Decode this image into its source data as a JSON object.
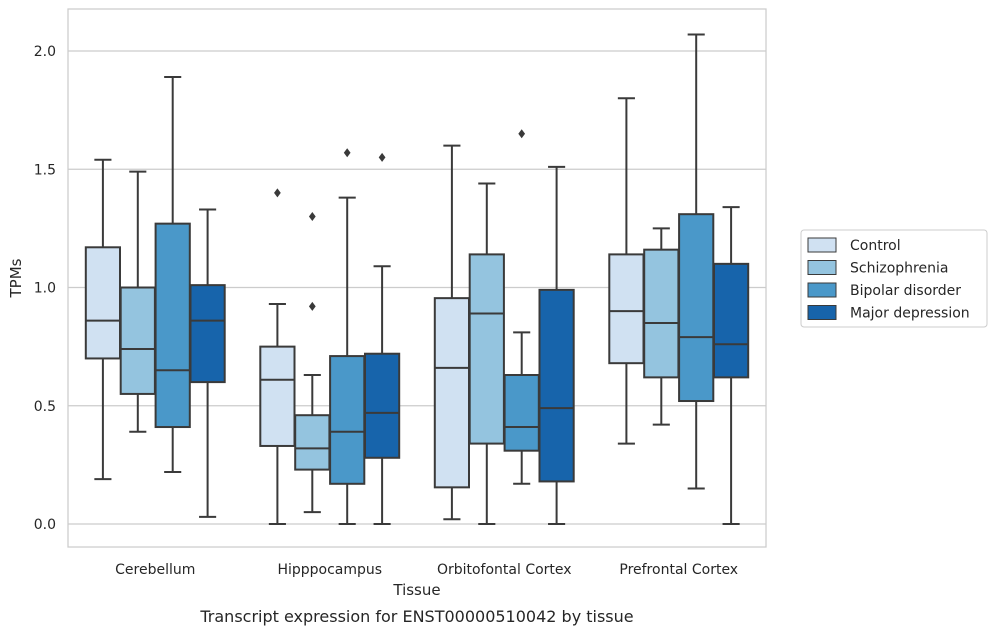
{
  "figure": {
    "caption": "Transcript expression for ENST00000510042 by tissue"
  },
  "chart_data": {
    "type": "box",
    "title": "",
    "xlabel": "Tissue",
    "ylabel": "TPMs",
    "ylim": [
      -0.1,
      2.18
    ],
    "yticks": [
      0.0,
      0.5,
      1.0,
      1.5,
      2.0
    ],
    "ytick_labels": [
      "0.0",
      "0.5",
      "1.0",
      "1.5",
      "2.0"
    ],
    "grid": "horizontal",
    "legend_position": "right",
    "categories": [
      "Cerebellum",
      "Hipppocampus",
      "Orbitofontal Cortex",
      "Prefrontal Cortex"
    ],
    "series": [
      {
        "name": "Control",
        "color": "#d0e1f2",
        "boxes": [
          {
            "whislo": 0.19,
            "q1": 0.7,
            "med": 0.86,
            "q3": 1.17,
            "whishi": 1.54,
            "fliers": []
          },
          {
            "whislo": 0.0,
            "q1": 0.33,
            "med": 0.61,
            "q3": 0.75,
            "whishi": 0.93,
            "fliers": [
              1.4
            ]
          },
          {
            "whislo": 0.02,
            "q1": 0.155,
            "med": 0.66,
            "q3": 0.955,
            "whishi": 1.6,
            "fliers": []
          },
          {
            "whislo": 0.34,
            "q1": 0.68,
            "med": 0.9,
            "q3": 1.14,
            "whishi": 1.8,
            "fliers": []
          }
        ]
      },
      {
        "name": "Schizophrenia",
        "color": "#94c4df",
        "boxes": [
          {
            "whislo": 0.39,
            "q1": 0.55,
            "med": 0.74,
            "q3": 1.0,
            "whishi": 1.49,
            "fliers": []
          },
          {
            "whislo": 0.05,
            "q1": 0.23,
            "med": 0.32,
            "q3": 0.46,
            "whishi": 0.63,
            "fliers": [
              0.92,
              1.3
            ]
          },
          {
            "whislo": 0.0,
            "q1": 0.34,
            "med": 0.89,
            "q3": 1.14,
            "whishi": 1.44,
            "fliers": []
          },
          {
            "whislo": 0.42,
            "q1": 0.62,
            "med": 0.85,
            "q3": 1.16,
            "whishi": 1.25,
            "fliers": []
          }
        ]
      },
      {
        "name": "Bipolar disorder",
        "color": "#4a98c9",
        "boxes": [
          {
            "whislo": 0.22,
            "q1": 0.41,
            "med": 0.65,
            "q3": 1.27,
            "whishi": 1.89,
            "fliers": []
          },
          {
            "whislo": 0.0,
            "q1": 0.17,
            "med": 0.39,
            "q3": 0.71,
            "whishi": 1.38,
            "fliers": [
              1.57
            ]
          },
          {
            "whislo": 0.17,
            "q1": 0.31,
            "med": 0.41,
            "q3": 0.63,
            "whishi": 0.81,
            "fliers": [
              1.65
            ]
          },
          {
            "whislo": 0.15,
            "q1": 0.52,
            "med": 0.79,
            "q3": 1.31,
            "whishi": 2.07,
            "fliers": []
          }
        ]
      },
      {
        "name": "Major depression",
        "color": "#1764ab",
        "boxes": [
          {
            "whislo": 0.03,
            "q1": 0.6,
            "med": 0.86,
            "q3": 1.01,
            "whishi": 1.33,
            "fliers": []
          },
          {
            "whislo": 0.0,
            "q1": 0.28,
            "med": 0.47,
            "q3": 0.72,
            "whishi": 1.09,
            "fliers": [
              1.55
            ]
          },
          {
            "whislo": 0.0,
            "q1": 0.18,
            "med": 0.49,
            "q3": 0.99,
            "whishi": 1.51,
            "fliers": []
          },
          {
            "whislo": 0.0,
            "q1": 0.62,
            "med": 0.76,
            "q3": 1.1,
            "whishi": 1.34,
            "fliers": []
          }
        ]
      }
    ]
  }
}
